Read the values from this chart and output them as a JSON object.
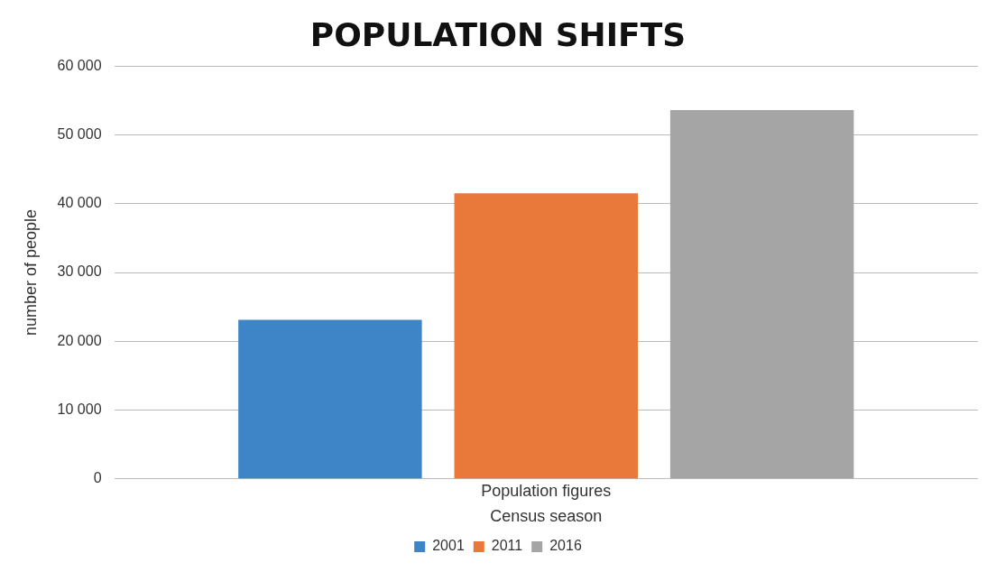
{
  "chart_data": {
    "type": "bar",
    "title": "POPULATION SHIFTS",
    "xlabel": "Census season",
    "ylabel": "number of people",
    "categories": [
      "Population figures"
    ],
    "series": [
      {
        "name": "2001",
        "color": "#3d85c6",
        "values": [
          23100
        ]
      },
      {
        "name": "2011",
        "color": "#e8793a",
        "values": [
          41500
        ]
      },
      {
        "name": "2016",
        "color": "#a5a5a5",
        "values": [
          53600
        ]
      }
    ],
    "ylim": [
      0,
      60000
    ],
    "yticks": [
      {
        "value": 0,
        "label": "0"
      },
      {
        "value": 10000,
        "label": "10 000"
      },
      {
        "value": 20000,
        "label": "20 000"
      },
      {
        "value": 30000,
        "label": "30 000"
      },
      {
        "value": 40000,
        "label": "40 000"
      },
      {
        "value": 50000,
        "label": "50 000"
      },
      {
        "value": 60000,
        "label": "60 000"
      }
    ],
    "grid": "y",
    "legend": "bottom"
  }
}
